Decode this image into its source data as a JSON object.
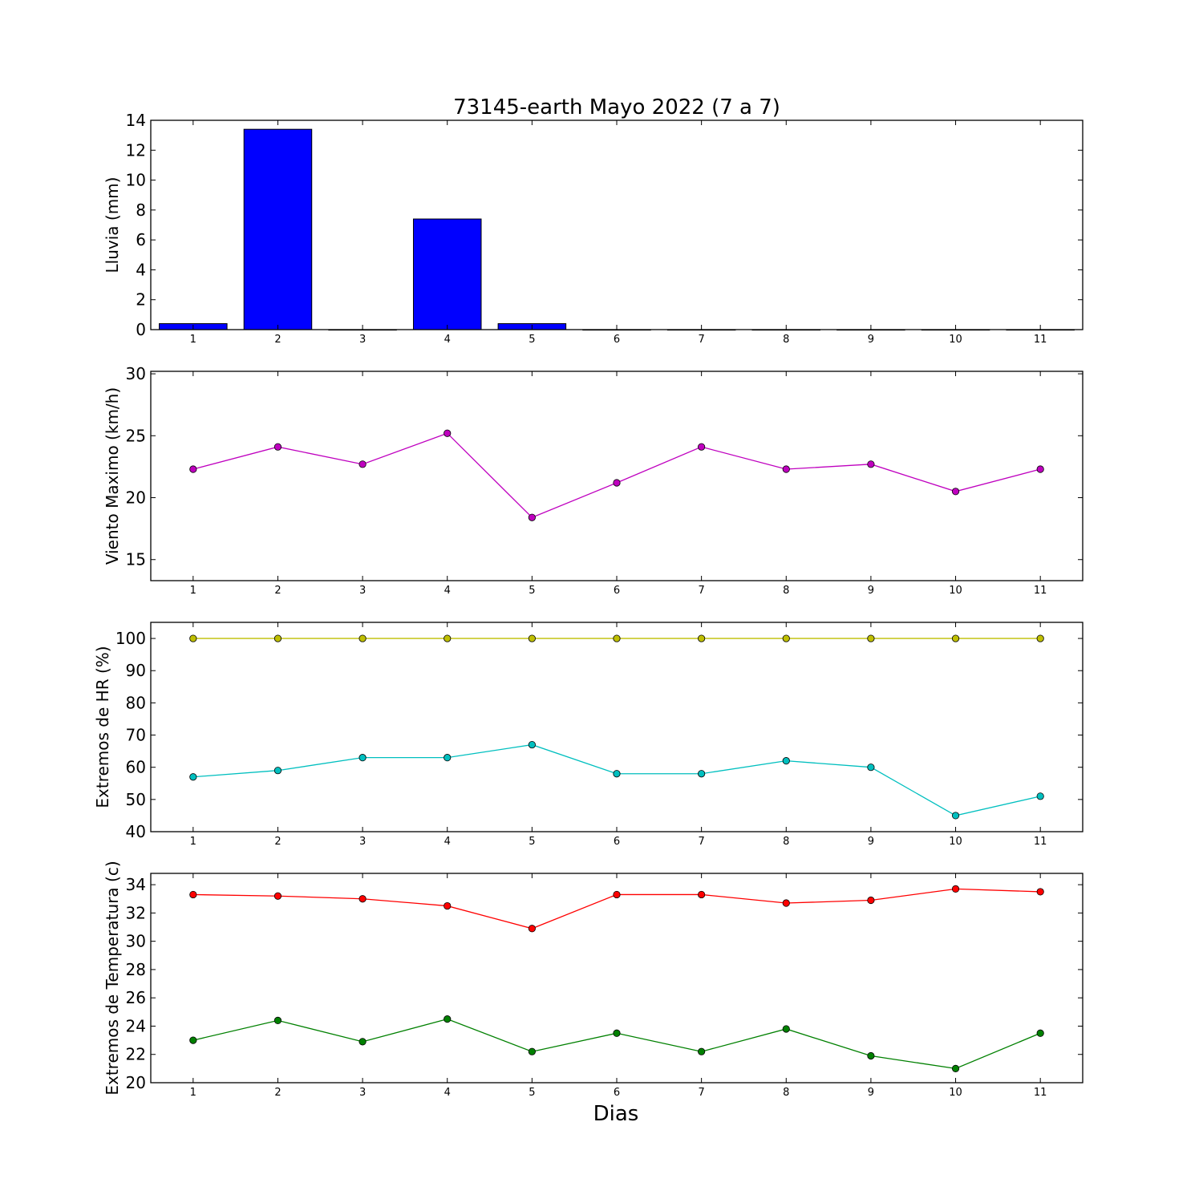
{
  "figure": {
    "title": "73145-earth Mayo 2022  (7 a 7)",
    "xlabel": "Dias"
  },
  "colors": {
    "lluvia_bars": "#0000ff",
    "viento": "#bf00bf",
    "hr_max": "#bfbf00",
    "hr_min": "#00bfbf",
    "temp_max": "#ff0000",
    "temp_min": "#008000"
  },
  "chart_data": [
    {
      "type": "bar",
      "title": "73145-earth Mayo 2022  (7 a 7)",
      "xlabel": "",
      "ylabel": "Lluvia (mm)",
      "categories": [
        "1",
        "2",
        "3",
        "4",
        "5",
        "6",
        "7",
        "8",
        "9",
        "10",
        "11"
      ],
      "x": [
        1,
        2,
        3,
        4,
        5,
        6,
        7,
        8,
        9,
        10,
        11
      ],
      "values": [
        0.4,
        13.4,
        0,
        7.4,
        0.4,
        0,
        0,
        0,
        0,
        0,
        0
      ],
      "xlim": [
        0.5,
        11.5
      ],
      "ylim": [
        0,
        14
      ],
      "yticks": [
        0,
        2,
        4,
        6,
        8,
        10,
        12,
        14
      ],
      "grid": false,
      "series": [
        {
          "values": [
            0.4,
            13.4,
            0,
            7.4,
            0.4,
            0,
            0,
            0,
            0,
            0,
            0
          ],
          "color": "#0000ff"
        }
      ]
    },
    {
      "type": "line",
      "title": "",
      "xlabel": "",
      "ylabel": "Viento Maximo (km/h)",
      "x": [
        1,
        2,
        3,
        4,
        5,
        6,
        7,
        8,
        9,
        10,
        11
      ],
      "xlim": [
        0.5,
        11.5
      ],
      "ylim": [
        13.3,
        30.2
      ],
      "yticks": [
        15,
        20,
        25,
        30
      ],
      "grid": false,
      "series": [
        {
          "values": [
            22.3,
            24.1,
            22.7,
            25.2,
            18.4,
            21.2,
            24.1,
            22.3,
            22.7,
            20.5,
            22.3
          ],
          "color": "#bf00bf"
        }
      ]
    },
    {
      "type": "line",
      "title": "",
      "xlabel": "",
      "ylabel": "Extremos de HR (%)",
      "x": [
        1,
        2,
        3,
        4,
        5,
        6,
        7,
        8,
        9,
        10,
        11
      ],
      "xlim": [
        0.5,
        11.5
      ],
      "ylim": [
        40,
        105
      ],
      "yticks": [
        40,
        50,
        60,
        70,
        80,
        90,
        100
      ],
      "grid": false,
      "series": [
        {
          "values": [
            100,
            100,
            100,
            100,
            100,
            100,
            100,
            100,
            100,
            100,
            100
          ],
          "color": "#bfbf00"
        },
        {
          "values": [
            57,
            59,
            63,
            63,
            67,
            58,
            58,
            62,
            60,
            45,
            51
          ],
          "color": "#00bfbf"
        }
      ]
    },
    {
      "type": "line",
      "title": "",
      "xlabel": "Dias",
      "ylabel": "Extremos de Temperatura (c)",
      "x": [
        1,
        2,
        3,
        4,
        5,
        6,
        7,
        8,
        9,
        10,
        11
      ],
      "xlim": [
        0.5,
        11.5
      ],
      "ylim": [
        20,
        34.8
      ],
      "yticks": [
        20,
        22,
        24,
        26,
        28,
        30,
        32,
        34
      ],
      "grid": false,
      "series": [
        {
          "values": [
            33.3,
            33.2,
            33.0,
            32.5,
            30.9,
            33.3,
            33.3,
            32.7,
            32.9,
            33.7,
            33.5
          ],
          "color": "#ff0000"
        },
        {
          "values": [
            23.0,
            24.4,
            22.9,
            24.5,
            22.2,
            23.5,
            22.2,
            23.8,
            21.9,
            21.0,
            23.5
          ],
          "color": "#008000"
        }
      ]
    }
  ]
}
